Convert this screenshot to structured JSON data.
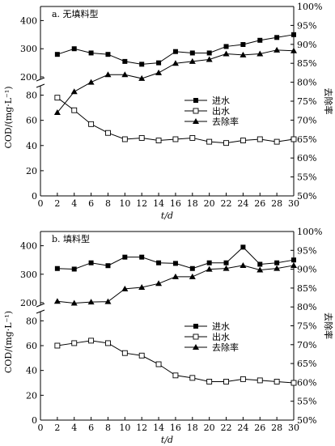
{
  "chart_data": [
    {
      "type": "line",
      "title": "a. 无填料型",
      "xlabel": "t/d",
      "ylabel": "COD/(mg·L⁻¹)",
      "y2label": "去除率",
      "x": [
        2,
        4,
        6,
        8,
        10,
        12,
        14,
        16,
        18,
        20,
        22,
        24,
        26,
        28,
        30
      ],
      "xlim": [
        0,
        30
      ],
      "xticks": [
        0,
        2,
        4,
        6,
        8,
        10,
        12,
        14,
        16,
        18,
        20,
        22,
        24,
        26,
        28,
        30
      ],
      "y_axis_broken": true,
      "ylim_lower": [
        0,
        90
      ],
      "ylim_upper": [
        180,
        450
      ],
      "yticks_lower": [
        0,
        20,
        40,
        60,
        80
      ],
      "yticks_upper": [
        200,
        300,
        400
      ],
      "y2lim": [
        "50%",
        "100%"
      ],
      "y2ticks": [
        "50%",
        "55%",
        "60%",
        "65%",
        "70%",
        "75%",
        "80%",
        "85%",
        "90%",
        "95%",
        "100%"
      ],
      "legend_position": "right-middle",
      "series": [
        {
          "name": "进水",
          "marker": "filled-square",
          "axis": "left",
          "values": [
            280,
            300,
            285,
            280,
            255,
            245,
            250,
            290,
            285,
            285,
            308,
            315,
            330,
            340,
            350
          ]
        },
        {
          "name": "出水",
          "marker": "open-square",
          "axis": "left",
          "values": [
            78,
            68,
            57,
            50,
            45,
            46,
            44,
            45,
            46,
            43,
            42,
            44,
            45,
            43,
            45
          ]
        },
        {
          "name": "去除率",
          "marker": "filled-triangle",
          "axis": "right",
          "values": [
            72,
            77.5,
            80,
            82,
            82,
            81,
            82.5,
            85,
            85.5,
            86,
            87.5,
            87.2,
            87.5,
            88.5,
            88.3
          ]
        }
      ]
    },
    {
      "type": "line",
      "title": "b. 填料型",
      "xlabel": "t/d",
      "ylabel": "COD/(mg·L⁻¹)",
      "y2label": "去除率",
      "x": [
        2,
        4,
        6,
        8,
        10,
        12,
        14,
        16,
        18,
        20,
        22,
        24,
        26,
        28,
        30
      ],
      "xlim": [
        0,
        30
      ],
      "xticks": [
        0,
        2,
        4,
        6,
        8,
        10,
        12,
        14,
        16,
        18,
        20,
        22,
        24,
        26,
        28,
        30
      ],
      "y_axis_broken": true,
      "ylim_lower": [
        0,
        90
      ],
      "ylim_upper": [
        180,
        450
      ],
      "yticks_lower": [
        0,
        20,
        40,
        60,
        80
      ],
      "yticks_upper": [
        200,
        300,
        400
      ],
      "y2lim": [
        "50%",
        "100%"
      ],
      "y2ticks": [
        "50%",
        "55%",
        "60%",
        "65%",
        "70%",
        "75%",
        "80%",
        "85%",
        "90%",
        "95%",
        "100%"
      ],
      "legend_position": "right-middle",
      "series": [
        {
          "name": "进水",
          "marker": "filled-square",
          "axis": "left",
          "values": [
            320,
            318,
            340,
            330,
            360,
            360,
            340,
            338,
            320,
            340,
            340,
            395,
            335,
            340,
            350
          ]
        },
        {
          "name": "出水",
          "marker": "open-square",
          "axis": "left",
          "values": [
            60,
            62,
            64,
            62,
            54,
            52,
            45,
            36,
            34,
            31,
            31,
            33,
            32,
            31,
            30
          ]
        },
        {
          "name": "去除率",
          "marker": "filled-triangle",
          "axis": "right",
          "values": [
            81.5,
            81,
            81.3,
            81.4,
            84.8,
            85.2,
            86.2,
            88,
            88,
            90,
            90.2,
            91,
            89.8,
            90.2,
            91
          ]
        }
      ]
    }
  ]
}
